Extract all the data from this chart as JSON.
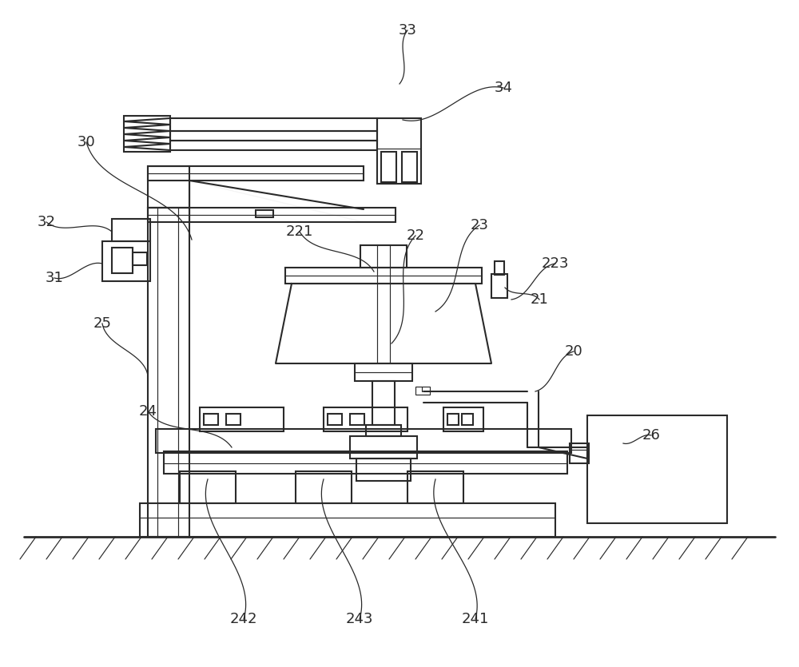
{
  "bg_color": "#ffffff",
  "lc": "#2a2a2a",
  "lw": 1.5,
  "tlw": 0.85,
  "fs": 13,
  "fig_w": 10.0,
  "fig_h": 8.35
}
